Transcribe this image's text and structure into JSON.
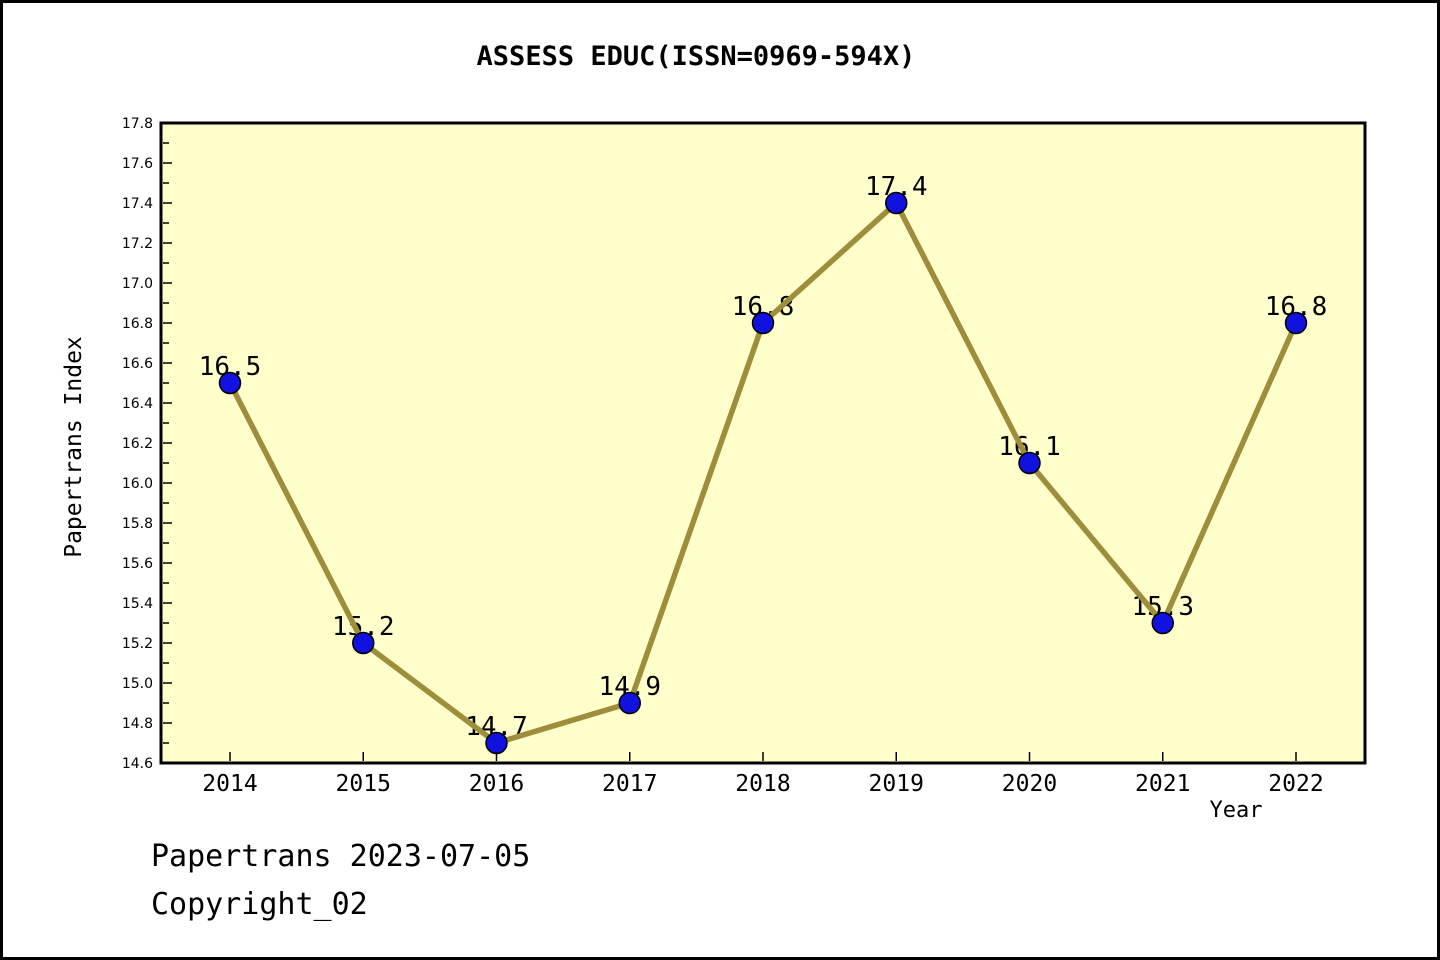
{
  "footer": {
    "line1": "Papertrans 2023-07-05",
    "line2": "Copyright_02"
  },
  "chart_data": {
    "type": "line",
    "title": "ASSESS EDUC(ISSN=0969-594X)",
    "xlabel": "Year",
    "ylabel": "Papertrans Index",
    "categories": [
      "2014",
      "2015",
      "2016",
      "2017",
      "2018",
      "2019",
      "2020",
      "2021",
      "2022"
    ],
    "series": [
      {
        "name": "Papertrans Index",
        "values": [
          16.5,
          15.2,
          14.7,
          14.9,
          16.8,
          17.4,
          16.1,
          15.3,
          16.8
        ]
      }
    ],
    "point_labels": [
      "16.5",
      "15.2",
      "14.7",
      "14.9",
      "16.8",
      "17.4",
      "16.1",
      "15.3",
      "16.8"
    ],
    "ylim": [
      14.6,
      17.8
    ],
    "ytick_step": 0.2,
    "ytick_minor_step": 0.1,
    "xtick_labels": [
      "2014",
      "2015",
      "2016",
      "2017",
      "2018",
      "2019",
      "2020",
      "2021",
      "2022"
    ],
    "grid": false,
    "legend": "none",
    "colors": {
      "page_bg": "#FFFFFF",
      "plot_bg": "#FFFFCC",
      "line": "#9E8E3C",
      "marker_fill": "#1212E0",
      "marker_edge": "#000000",
      "axis": "#000000",
      "text": "#000000"
    }
  }
}
